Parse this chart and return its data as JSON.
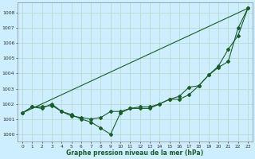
{
  "title": "Graphe pression niveau de la mer (hPa)",
  "bg_color": "#cceeff",
  "grid_color": "#b8ddd0",
  "line_color": "#1a5c2a",
  "marker_color": "#1a5c2a",
  "x_ticks": [
    0,
    1,
    2,
    3,
    4,
    5,
    6,
    7,
    8,
    9,
    10,
    11,
    12,
    13,
    14,
    15,
    16,
    17,
    18,
    19,
    20,
    21,
    22,
    23
  ],
  "ylim": [
    999.5,
    1008.7
  ],
  "y_ticks": [
    1000,
    1001,
    1002,
    1003,
    1004,
    1005,
    1006,
    1007,
    1008
  ],
  "series_no_marker": [
    [
      1001.4,
      1008.3
    ]
  ],
  "series_no_marker_x": [
    [
      0,
      23
    ]
  ],
  "series": [
    {
      "x": [
        0,
        1,
        2,
        3,
        4,
        5,
        6,
        7,
        8,
        9,
        10,
        11,
        12,
        13,
        14,
        15,
        16,
        17,
        18,
        19,
        20,
        21,
        22,
        23
      ],
      "y": [
        1001.4,
        1001.8,
        1001.8,
        1001.9,
        1001.5,
        1001.3,
        1001.0,
        1000.8,
        1000.4,
        1000.0,
        1001.4,
        1001.7,
        1001.7,
        1001.7,
        1002.0,
        1002.3,
        1002.3,
        1002.6,
        1003.2,
        1003.9,
        1004.5,
        1005.6,
        1006.5,
        1008.3
      ],
      "marker": true
    },
    {
      "x": [
        0,
        1,
        2,
        3,
        4,
        5,
        6,
        7,
        8,
        9,
        10,
        11,
        12,
        13,
        14,
        15,
        16,
        17,
        18,
        19,
        20,
        21,
        22,
        23
      ],
      "y": [
        1001.4,
        1001.8,
        1001.7,
        1002.0,
        1001.5,
        1001.2,
        1001.1,
        1001.0,
        1001.1,
        1001.5,
        1001.5,
        1001.7,
        1001.8,
        1001.8,
        1002.0,
        1002.3,
        1002.5,
        1003.1,
        1003.2,
        1003.9,
        1004.4,
        1004.8,
        1007.0,
        1008.3
      ],
      "marker": true
    },
    {
      "x": [
        0,
        23
      ],
      "y": [
        1001.4,
        1008.3
      ],
      "marker": false
    }
  ]
}
